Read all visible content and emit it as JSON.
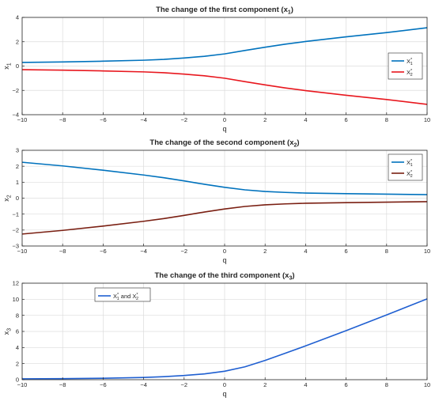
{
  "chart_data": [
    {
      "type": "line",
      "title": "The change of the first component (x",
      "title_sub": "1",
      "title_end": ")",
      "xlabel": "q",
      "ylabel": "x",
      "ylabel_sub": "1",
      "xlim": [
        -10,
        10
      ],
      "ylim": [
        -4,
        4
      ],
      "xticks": [
        "-10",
        "-8",
        "-6",
        "-4",
        "-2",
        "0",
        "2",
        "4",
        "6",
        "8",
        "10"
      ],
      "yticks": [
        "-4",
        "-2",
        "0",
        "2",
        "4"
      ],
      "grid": true,
      "legend_position": "right",
      "series": [
        {
          "name": "X",
          "name_sup": "*",
          "name_sub": "1",
          "color": "#0072BD",
          "x": [
            -10,
            -8,
            -6,
            -4,
            -3,
            -2,
            -1,
            0,
            1,
            2,
            3,
            4,
            6,
            8,
            10
          ],
          "y": [
            0.3,
            0.34,
            0.4,
            0.48,
            0.55,
            0.66,
            0.8,
            1.0,
            1.28,
            1.55,
            1.8,
            2.02,
            2.4,
            2.75,
            3.15
          ]
        },
        {
          "name": "X",
          "name_sup": "*",
          "name_sub": "2",
          "color": "#E8171E",
          "x": [
            -10,
            -8,
            -6,
            -4,
            -3,
            -2,
            -1,
            0,
            1,
            2,
            3,
            4,
            6,
            8,
            10
          ],
          "y": [
            -0.3,
            -0.34,
            -0.4,
            -0.48,
            -0.55,
            -0.66,
            -0.8,
            -1.0,
            -1.28,
            -1.55,
            -1.8,
            -2.02,
            -2.4,
            -2.75,
            -3.15
          ]
        }
      ]
    },
    {
      "type": "line",
      "title": "The change of the second component (x",
      "title_sub": "2",
      "title_end": ")",
      "xlabel": "q",
      "ylabel": "x",
      "ylabel_sub": "2",
      "xlim": [
        -10,
        10
      ],
      "ylim": [
        -3,
        3
      ],
      "xticks": [
        "-10",
        "-8",
        "-6",
        "-4",
        "-2",
        "0",
        "2",
        "4",
        "6",
        "8",
        "10"
      ],
      "yticks": [
        "-3",
        "-2",
        "-1",
        "0",
        "1",
        "2",
        "3"
      ],
      "grid": true,
      "legend_position": "top-right",
      "series": [
        {
          "name": "X",
          "name_sup": "*",
          "name_sub": "1",
          "color": "#0072BD",
          "x": [
            -10,
            -8,
            -6,
            -4,
            -3,
            -2,
            -1,
            0,
            1,
            2,
            3,
            4,
            6,
            8,
            10
          ],
          "y": [
            2.25,
            2.02,
            1.75,
            1.45,
            1.28,
            1.08,
            0.87,
            0.68,
            0.52,
            0.42,
            0.36,
            0.32,
            0.28,
            0.25,
            0.22
          ]
        },
        {
          "name": "X",
          "name_sup": "*",
          "name_sub": "2",
          "color": "#7A1F12",
          "x": [
            -10,
            -8,
            -6,
            -4,
            -3,
            -2,
            -1,
            0,
            1,
            2,
            3,
            4,
            6,
            8,
            10
          ],
          "y": [
            -2.25,
            -2.02,
            -1.75,
            -1.45,
            -1.28,
            -1.08,
            -0.87,
            -0.68,
            -0.52,
            -0.42,
            -0.36,
            -0.32,
            -0.28,
            -0.25,
            -0.22
          ]
        }
      ]
    },
    {
      "type": "line",
      "title": "The change of the third component (x",
      "title_sub": "3",
      "title_end": ")",
      "xlabel": "q",
      "ylabel": "x",
      "ylabel_sub": "3",
      "xlim": [
        -10,
        10
      ],
      "ylim": [
        0,
        12
      ],
      "xticks": [
        "-10",
        "-8",
        "-6",
        "-4",
        "-2",
        "0",
        "2",
        "4",
        "6",
        "8",
        "10"
      ],
      "yticks": [
        "0",
        "2",
        "4",
        "6",
        "8",
        "10",
        "12"
      ],
      "grid": true,
      "legend_position": "top-left",
      "series": [
        {
          "name": "X",
          "name_sup": "*",
          "name_sub": "1",
          "name_mid": " and X",
          "name2_sup": "*",
          "name2_sub": "2",
          "color": "#1F5FD1",
          "x": [
            -10,
            -8,
            -6,
            -4,
            -3,
            -2,
            -1,
            0,
            1,
            2,
            3,
            4,
            6,
            8,
            10
          ],
          "y": [
            0.1,
            0.13,
            0.18,
            0.28,
            0.38,
            0.52,
            0.72,
            1.05,
            1.6,
            2.4,
            3.3,
            4.2,
            6.1,
            8.05,
            10.05
          ]
        }
      ]
    }
  ]
}
